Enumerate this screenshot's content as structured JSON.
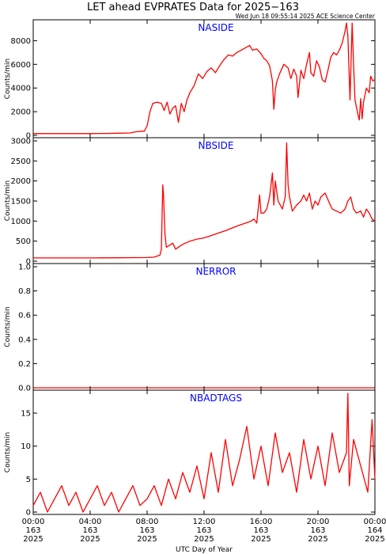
{
  "title": "LET ahead EVPRATES Data for 2025−163",
  "timestamp": "Wed Jun 18 09:55:14 2025 ACE Science Center",
  "xlabel": "UTC Day of Year",
  "x_ticks": [
    {
      "time": "00:00",
      "doy": "163",
      "year": "2025"
    },
    {
      "time": "04:00",
      "doy": "163",
      "year": "2025"
    },
    {
      "time": "08:00",
      "doy": "163",
      "year": "2025"
    },
    {
      "time": "12:00",
      "doy": "163",
      "year": "2025"
    },
    {
      "time": "16:00",
      "doy": "163",
      "year": "2025"
    },
    {
      "time": "20:00",
      "doy": "163",
      "year": "2025"
    },
    {
      "time": "00:00",
      "doy": "164",
      "year": "2025"
    }
  ],
  "colors": {
    "line": "#ff0000",
    "panel_label": "#0000ff",
    "axis": "#000000"
  },
  "chart_data": [
    {
      "type": "line",
      "panel_label": "NASIDE",
      "ylabel": "Counts/min",
      "xlim": [
        0,
        24
      ],
      "ylim": [
        0,
        9500
      ],
      "yticks": [
        0,
        2000,
        4000,
        6000,
        8000
      ],
      "series": [
        {
          "points": [
            [
              0,
              150
            ],
            [
              1,
              150
            ],
            [
              2,
              150
            ],
            [
              3,
              150
            ],
            [
              4,
              150
            ],
            [
              5,
              160
            ],
            [
              6,
              180
            ],
            [
              6.8,
              200
            ],
            [
              7.2,
              300
            ],
            [
              7.6,
              350
            ],
            [
              7.8,
              350
            ],
            [
              8,
              800
            ],
            [
              8.2,
              2000
            ],
            [
              8.4,
              2700
            ],
            [
              8.7,
              2800
            ],
            [
              9,
              2700
            ],
            [
              9.2,
              2100
            ],
            [
              9.4,
              2800
            ],
            [
              9.6,
              1800
            ],
            [
              9.8,
              2300
            ],
            [
              10,
              2500
            ],
            [
              10.2,
              1100
            ],
            [
              10.4,
              2700
            ],
            [
              10.6,
              2000
            ],
            [
              10.8,
              3000
            ],
            [
              11,
              3600
            ],
            [
              11.3,
              4200
            ],
            [
              11.6,
              5200
            ],
            [
              11.9,
              4800
            ],
            [
              12.2,
              5400
            ],
            [
              12.5,
              5700
            ],
            [
              12.8,
              5300
            ],
            [
              13.1,
              5900
            ],
            [
              13.4,
              6400
            ],
            [
              13.7,
              6800
            ],
            [
              14,
              6700
            ],
            [
              14.3,
              7000
            ],
            [
              14.6,
              7200
            ],
            [
              14.9,
              7400
            ],
            [
              15.2,
              7600
            ],
            [
              15.4,
              7200
            ],
            [
              15.7,
              7300
            ],
            [
              16,
              6900
            ],
            [
              16.2,
              6500
            ],
            [
              16.4,
              6300
            ],
            [
              16.6,
              5900
            ],
            [
              16.8,
              4600
            ],
            [
              16.9,
              2200
            ],
            [
              17,
              3800
            ],
            [
              17.1,
              4500
            ],
            [
              17.3,
              5200
            ],
            [
              17.6,
              6000
            ],
            [
              17.9,
              5700
            ],
            [
              18.1,
              4800
            ],
            [
              18.3,
              5600
            ],
            [
              18.5,
              5000
            ],
            [
              18.6,
              3200
            ],
            [
              18.8,
              5500
            ],
            [
              19,
              4800
            ],
            [
              19.2,
              6000
            ],
            [
              19.4,
              7000
            ],
            [
              19.5,
              5300
            ],
            [
              19.7,
              5000
            ],
            [
              19.9,
              6300
            ],
            [
              20.1,
              5800
            ],
            [
              20.3,
              4700
            ],
            [
              20.5,
              4500
            ],
            [
              20.7,
              5500
            ],
            [
              20.9,
              6600
            ],
            [
              21.1,
              7000
            ],
            [
              21.3,
              6800
            ],
            [
              21.5,
              7200
            ],
            [
              21.7,
              7800
            ],
            [
              21.9,
              8800
            ],
            [
              22,
              9500
            ],
            [
              22.1,
              8400
            ],
            [
              22.25,
              3000
            ],
            [
              22.4,
              9500
            ],
            [
              22.5,
              6000
            ],
            [
              22.6,
              3000
            ],
            [
              22.8,
              1800
            ],
            [
              22.9,
              1300
            ],
            [
              23,
              3100
            ],
            [
              23.1,
              1400
            ],
            [
              23.2,
              2800
            ],
            [
              23.4,
              4000
            ],
            [
              23.6,
              3600
            ],
            [
              23.7,
              5000
            ],
            [
              23.85,
              4600
            ],
            [
              24,
              4700
            ]
          ]
        }
      ]
    },
    {
      "type": "line",
      "panel_label": "NBSIDE",
      "ylabel": "Counts/min",
      "xlim": [
        0,
        24
      ],
      "ylim": [
        0,
        3000
      ],
      "yticks": [
        0,
        500,
        1000,
        1500,
        2000,
        2500,
        3000
      ],
      "series": [
        {
          "points": [
            [
              0,
              80
            ],
            [
              2,
              80
            ],
            [
              4,
              80
            ],
            [
              6,
              85
            ],
            [
              8,
              90
            ],
            [
              8.5,
              100
            ],
            [
              8.9,
              150
            ],
            [
              9,
              300
            ],
            [
              9.1,
              1900
            ],
            [
              9.15,
              1650
            ],
            [
              9.25,
              700
            ],
            [
              9.35,
              350
            ],
            [
              9.6,
              400
            ],
            [
              9.8,
              450
            ],
            [
              10,
              300
            ],
            [
              10.5,
              420
            ],
            [
              11,
              500
            ],
            [
              11.5,
              550
            ],
            [
              12,
              580
            ],
            [
              12.5,
              640
            ],
            [
              13,
              700
            ],
            [
              13.5,
              760
            ],
            [
              14,
              830
            ],
            [
              14.5,
              900
            ],
            [
              15,
              960
            ],
            [
              15.3,
              1000
            ],
            [
              15.5,
              1050
            ],
            [
              15.7,
              950
            ],
            [
              15.9,
              1650
            ],
            [
              16,
              1200
            ],
            [
              16.2,
              1200
            ],
            [
              16.4,
              1300
            ],
            [
              16.6,
              1600
            ],
            [
              16.8,
              2200
            ],
            [
              16.9,
              1400
            ],
            [
              17,
              2000
            ],
            [
              17.2,
              1500
            ],
            [
              17.5,
              1300
            ],
            [
              17.7,
              1600
            ],
            [
              17.8,
              2950
            ],
            [
              17.9,
              1900
            ],
            [
              18,
              1600
            ],
            [
              18.2,
              1250
            ],
            [
              18.5,
              1400
            ],
            [
              18.8,
              1500
            ],
            [
              19,
              1650
            ],
            [
              19.2,
              1500
            ],
            [
              19.4,
              1700
            ],
            [
              19.6,
              1300
            ],
            [
              19.8,
              1500
            ],
            [
              20,
              1400
            ],
            [
              20.2,
              1600
            ],
            [
              20.5,
              1700
            ],
            [
              20.8,
              1450
            ],
            [
              21,
              1300
            ],
            [
              21.3,
              1250
            ],
            [
              21.6,
              1200
            ],
            [
              21.9,
              1300
            ],
            [
              22.1,
              1500
            ],
            [
              22.3,
              1600
            ],
            [
              22.5,
              1300
            ],
            [
              22.7,
              1200
            ],
            [
              23,
              1250
            ],
            [
              23.2,
              1100
            ],
            [
              23.4,
              1300
            ],
            [
              23.6,
              1200
            ],
            [
              23.8,
              1050
            ],
            [
              24,
              1000
            ]
          ]
        }
      ]
    },
    {
      "type": "line",
      "panel_label": "NERROR",
      "ylabel": "Counts/min",
      "xlim": [
        0,
        24
      ],
      "ylim": [
        0,
        1.0
      ],
      "yticks": [
        0.0,
        0.2,
        0.4,
        0.6,
        0.8,
        1.0
      ],
      "series": [
        {
          "points": [
            [
              0,
              0
            ],
            [
              24,
              0
            ]
          ]
        }
      ]
    },
    {
      "type": "line",
      "panel_label": "NBADTAGS",
      "ylabel": "Counts/min",
      "xlim": [
        0,
        24
      ],
      "ylim": [
        0,
        18
      ],
      "yticks": [
        0,
        5,
        10,
        15
      ],
      "series": [
        {
          "points": [
            [
              0,
              1
            ],
            [
              0.5,
              3
            ],
            [
              1,
              0
            ],
            [
              1.5,
              2
            ],
            [
              2,
              4
            ],
            [
              2.5,
              1
            ],
            [
              3,
              3
            ],
            [
              3.5,
              0
            ],
            [
              4,
              2
            ],
            [
              4.5,
              4
            ],
            [
              5,
              1
            ],
            [
              5.5,
              3
            ],
            [
              6,
              0
            ],
            [
              6.5,
              2
            ],
            [
              7,
              4
            ],
            [
              7.5,
              1
            ],
            [
              8,
              2
            ],
            [
              8.5,
              4
            ],
            [
              9,
              1
            ],
            [
              9.5,
              5
            ],
            [
              10,
              2
            ],
            [
              10.5,
              6
            ],
            [
              11,
              3
            ],
            [
              11.5,
              7
            ],
            [
              12,
              2
            ],
            [
              12.5,
              9
            ],
            [
              13,
              3
            ],
            [
              13.5,
              11
            ],
            [
              14,
              4
            ],
            [
              14.5,
              8
            ],
            [
              15,
              13
            ],
            [
              15.5,
              5
            ],
            [
              16,
              10
            ],
            [
              16.5,
              4
            ],
            [
              17,
              12
            ],
            [
              17.5,
              6
            ],
            [
              18,
              9
            ],
            [
              18.5,
              3
            ],
            [
              19,
              11
            ],
            [
              19.5,
              5
            ],
            [
              20,
              10
            ],
            [
              20.5,
              4
            ],
            [
              21,
              12
            ],
            [
              21.5,
              6
            ],
            [
              22,
              9
            ],
            [
              22.1,
              18
            ],
            [
              22.2,
              4
            ],
            [
              22.5,
              11
            ],
            [
              23,
              7
            ],
            [
              23.5,
              3
            ],
            [
              23.8,
              14
            ],
            [
              24,
              5
            ]
          ]
        }
      ]
    }
  ]
}
